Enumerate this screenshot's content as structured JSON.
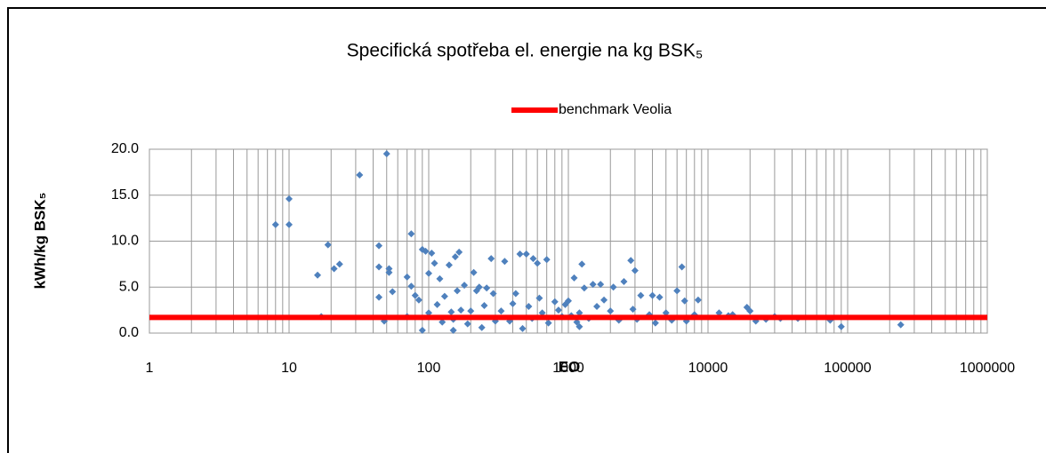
{
  "chart_data": {
    "type": "scatter",
    "title": "Specifická spotřeba el. energie na kg BSK₅",
    "x_label": "EO",
    "y_label": "kWh/kg BSK₅",
    "xscale": "log",
    "grid": true,
    "legend": "top",
    "xlim": [
      1,
      1000000
    ],
    "xticks": [
      1,
      10,
      100,
      1000,
      10000,
      100000,
      1000000
    ],
    "ylim": [
      0,
      20
    ],
    "yticks": [
      {
        "value": 0,
        "label": "0.0"
      },
      {
        "value": 5,
        "label": "5.0"
      },
      {
        "value": 10,
        "label": "10.0"
      },
      {
        "value": 15,
        "label": "15.0"
      },
      {
        "value": 20,
        "label": "20.0"
      }
    ],
    "series": [
      {
        "color": "#4f81bd",
        "x": [
          8,
          10,
          10,
          16,
          17,
          19,
          21,
          23,
          32,
          44,
          44,
          44,
          48,
          50,
          52,
          52,
          55,
          70,
          70,
          75,
          75,
          80,
          85,
          90,
          90,
          95,
          100,
          100,
          105,
          110,
          115,
          120,
          125,
          130,
          140,
          145,
          150,
          150,
          155,
          160,
          165,
          170,
          180,
          190,
          200,
          210,
          220,
          230,
          240,
          250,
          260,
          280,
          290,
          300,
          330,
          350,
          380,
          400,
          420,
          450,
          470,
          500,
          520,
          550,
          560,
          600,
          620,
          650,
          700,
          720,
          800,
          850,
          900,
          950,
          1000,
          1050,
          1100,
          1150,
          1200,
          1200,
          1250,
          1300,
          1400,
          1500,
          1600,
          1700,
          1800,
          2000,
          2100,
          2300,
          2500,
          2800,
          2900,
          3000,
          3100,
          3300,
          3800,
          4000,
          4200,
          4500,
          5000,
          5500,
          6000,
          6500,
          6800,
          7000,
          8000,
          8500,
          12000,
          14000,
          15000,
          19000,
          20000,
          22000,
          26000,
          30000,
          33000,
          44000,
          75000,
          90000,
          240000
        ],
        "values": [
          11.8,
          14.6,
          11.8,
          6.3,
          1.8,
          9.6,
          7.0,
          7.5,
          17.2,
          9.5,
          7.2,
          3.9,
          1.3,
          19.5,
          7.0,
          6.6,
          4.5,
          6.1,
          1.8,
          10.8,
          5.1,
          4.1,
          3.6,
          0.3,
          9.1,
          8.9,
          6.5,
          2.2,
          8.7,
          7.6,
          3.1,
          5.9,
          1.2,
          4.0,
          7.4,
          2.3,
          0.3,
          1.5,
          8.3,
          4.6,
          8.8,
          2.5,
          5.2,
          1.0,
          2.4,
          6.6,
          4.6,
          5.0,
          0.6,
          3.0,
          4.9,
          8.1,
          4.3,
          1.3,
          2.4,
          7.8,
          1.3,
          3.2,
          4.3,
          8.6,
          0.5,
          8.6,
          2.9,
          1.6,
          8.1,
          7.6,
          3.8,
          2.2,
          8.0,
          1.1,
          3.4,
          2.5,
          1.8,
          3.1,
          3.5,
          1.9,
          6.0,
          1.2,
          0.7,
          2.2,
          7.5,
          4.9,
          1.6,
          5.3,
          2.9,
          5.3,
          3.6,
          2.4,
          5.0,
          1.4,
          5.6,
          7.9,
          2.6,
          6.8,
          1.5,
          4.1,
          2.0,
          4.1,
          1.1,
          3.9,
          2.2,
          1.4,
          4.6,
          7.2,
          3.5,
          1.3,
          2.0,
          3.6,
          2.2,
          1.9,
          2.0,
          2.8,
          2.4,
          1.3,
          1.5,
          1.8,
          1.6,
          1.6,
          1.4,
          0.7,
          0.9
        ]
      },
      {
        "name": "benchmark Veolia",
        "color": "#ff0000",
        "line": true,
        "x": [
          1,
          1000000
        ],
        "values": [
          1.7,
          1.7
        ]
      }
    ]
  }
}
